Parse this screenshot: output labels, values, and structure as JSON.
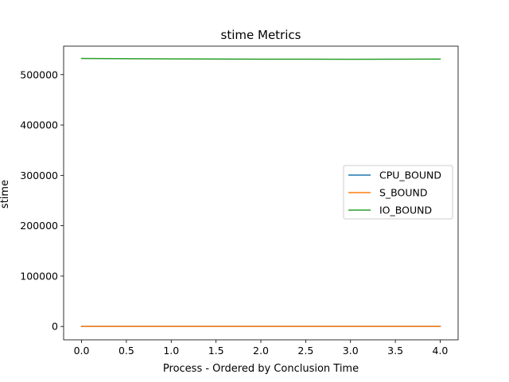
{
  "chart_data": {
    "type": "line",
    "title": "stime Metrics",
    "xlabel": "Process - Ordered by Conclusion Time",
    "ylabel": "stime",
    "x": [
      0,
      1,
      2,
      3,
      4
    ],
    "xlim": [
      -0.2,
      4.2
    ],
    "ylim": [
      -26500,
      556500
    ],
    "xticks": [
      0.0,
      0.5,
      1.0,
      1.5,
      2.0,
      2.5,
      3.0,
      3.5,
      4.0
    ],
    "xtick_labels": [
      "0.0",
      "0.5",
      "1.0",
      "1.5",
      "2.0",
      "2.5",
      "3.0",
      "3.5",
      "4.0"
    ],
    "yticks": [
      0,
      100000,
      200000,
      300000,
      400000,
      500000
    ],
    "ytick_labels": [
      "0",
      "100000",
      "200000",
      "300000",
      "400000",
      "500000"
    ],
    "series": [
      {
        "name": "CPU_BOUND",
        "color": "#1f77b4",
        "values": [
          100,
          100,
          100,
          100,
          100
        ]
      },
      {
        "name": "S_BOUND",
        "color": "#ff7f0e",
        "values": [
          150,
          150,
          150,
          150,
          150
        ]
      },
      {
        "name": "IO_BOUND",
        "color": "#2ca02c",
        "values": [
          532000,
          531200,
          530700,
          530500,
          530800
        ]
      }
    ],
    "legend_position": "center-right",
    "grid": false
  }
}
